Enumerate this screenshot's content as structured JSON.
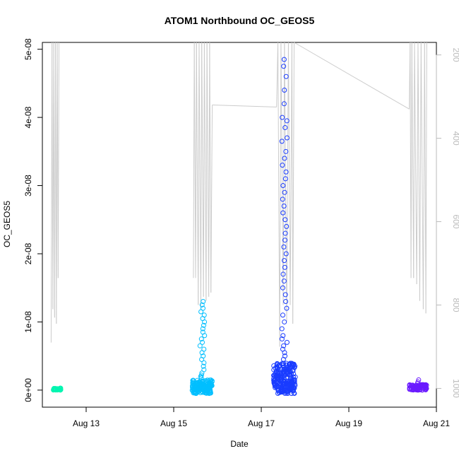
{
  "chart_data": {
    "type": "scatter",
    "title": "ATOM1 Northbound OC_GEOS5",
    "xlabel": "Date",
    "ylabel": "OC_GEOS5",
    "x_ticks": [
      "Aug 13",
      "Aug 15",
      "Aug 17",
      "Aug 19",
      "Aug 21"
    ],
    "x_tick_days": [
      13,
      15,
      17,
      19,
      21
    ],
    "xlim": [
      12.0,
      21.0
    ],
    "y_ticks": [
      "0e+00",
      "1e-08",
      "2e-08",
      "3e-08",
      "4e-08",
      "5e-08"
    ],
    "y_tick_values": [
      0,
      1e-08,
      2e-08,
      3e-08,
      4e-08,
      5e-08
    ],
    "ylim": [
      -2.5e-09,
      5.1e-08
    ],
    "y2_ticks": [
      "200",
      "400",
      "600",
      "800",
      "1000"
    ],
    "y2_tick_values": [
      200,
      400,
      600,
      800,
      1000
    ],
    "y2lim": [
      1045,
      170
    ],
    "y2_scale": "pressure (reversed)",
    "grid": false,
    "series": [
      {
        "color": "#00f5b0",
        "clusters": [
          {
            "x0": 12.25,
            "x1": 12.42,
            "ymin": 0.0,
            "ymax": 3e-10,
            "n": 40,
            "spikes": []
          }
        ]
      },
      {
        "color": "#00bfff",
        "clusters": [
          {
            "x0": 15.42,
            "x1": 15.88,
            "ymin": -5e-10,
            "ymax": 1.5e-09,
            "n": 170,
            "spikes": [
              1.3e-08,
              1.25e-08,
              1.2e-08,
              1.15e-08,
              1.1e-08,
              1.05e-08,
              1e-08,
              9.5e-09,
              9e-09,
              8.5e-09,
              8e-09,
              7.5e-09,
              7e-09,
              6.5e-09,
              6e-09,
              5.5e-09,
              5e-09,
              4.5e-09,
              4e-09,
              3.5e-09,
              3e-09,
              2.5e-09,
              2.2e-09,
              2e-09,
              1.8e-09
            ]
          }
        ]
      },
      {
        "color": "#1a3cff",
        "clusters": [
          {
            "x0": 17.28,
            "x1": 17.78,
            "ymin": -5e-10,
            "ymax": 4e-09,
            "n": 240,
            "spikes": [
              4.85e-08,
              4.75e-08,
              4.6e-08,
              4.4e-08,
              4.2e-08,
              4e-08,
              3.95e-08,
              3.85e-08,
              3.7e-08,
              3.65e-08,
              3.5e-08,
              3.4e-08,
              3.3e-08,
              3.2e-08,
              3.1e-08,
              3e-08,
              2.9e-08,
              2.8e-08,
              2.7e-08,
              2.6e-08,
              2.5e-08,
              2.4e-08,
              2.3e-08,
              2.2e-08,
              2.1e-08,
              2e-08,
              1.9e-08,
              1.8e-08,
              1.7e-08,
              1.6e-08,
              1.5e-08,
              1.4e-08,
              1.3e-08,
              1.2e-08,
              1.1e-08,
              1e-08,
              9e-09,
              8e-09,
              7.5e-09,
              7e-09,
              6.5e-09,
              6e-09,
              5.5e-09,
              5e-09,
              4.5e-09
            ]
          }
        ]
      },
      {
        "color": "#6a1aff",
        "clusters": [
          {
            "x0": 20.38,
            "x1": 20.78,
            "ymin": 0.0,
            "ymax": 8e-10,
            "n": 90,
            "spikes": [
              1.5e-09,
              1.2e-09,
              1e-09
            ]
          }
        ]
      }
    ],
    "altitude_trace": {
      "color": "#cccccc",
      "points": [
        [
          12.2,
          890
        ],
        [
          12.22,
          155
        ],
        [
          12.24,
          810
        ],
        [
          12.26,
          150
        ],
        [
          12.28,
          830
        ],
        [
          12.3,
          150
        ],
        [
          12.32,
          845
        ],
        [
          12.34,
          150
        ],
        [
          12.36,
          735
        ],
        [
          12.38,
          150
        ],
        [
          15.45,
          735
        ],
        [
          15.47,
          150
        ],
        [
          15.5,
          735
        ],
        [
          15.52,
          150
        ],
        [
          15.56,
          800
        ],
        [
          15.58,
          150
        ],
        [
          15.62,
          810
        ],
        [
          15.64,
          150
        ],
        [
          15.68,
          780
        ],
        [
          15.7,
          150
        ],
        [
          15.74,
          790
        ],
        [
          15.76,
          150
        ],
        [
          15.8,
          780
        ],
        [
          15.82,
          150
        ],
        [
          15.85,
          770
        ],
        [
          15.88,
          320
        ],
        [
          17.35,
          325
        ],
        [
          17.38,
          150
        ],
        [
          17.42,
          900
        ],
        [
          17.45,
          150
        ],
        [
          17.5,
          800
        ],
        [
          17.53,
          150
        ],
        [
          17.58,
          840
        ],
        [
          17.62,
          150
        ],
        [
          17.66,
          800
        ],
        [
          17.7,
          150
        ],
        [
          17.72,
          845
        ],
        [
          17.75,
          150
        ],
        [
          20.38,
          330
        ],
        [
          20.4,
          150
        ],
        [
          20.42,
          735
        ],
        [
          20.44,
          150
        ],
        [
          20.48,
          735
        ],
        [
          20.5,
          150
        ],
        [
          20.55,
          750
        ],
        [
          20.58,
          150
        ],
        [
          20.62,
          790
        ],
        [
          20.65,
          150
        ],
        [
          20.7,
          810
        ],
        [
          20.73,
          150
        ],
        [
          20.76,
          820
        ],
        [
          20.78,
          150
        ]
      ]
    }
  }
}
